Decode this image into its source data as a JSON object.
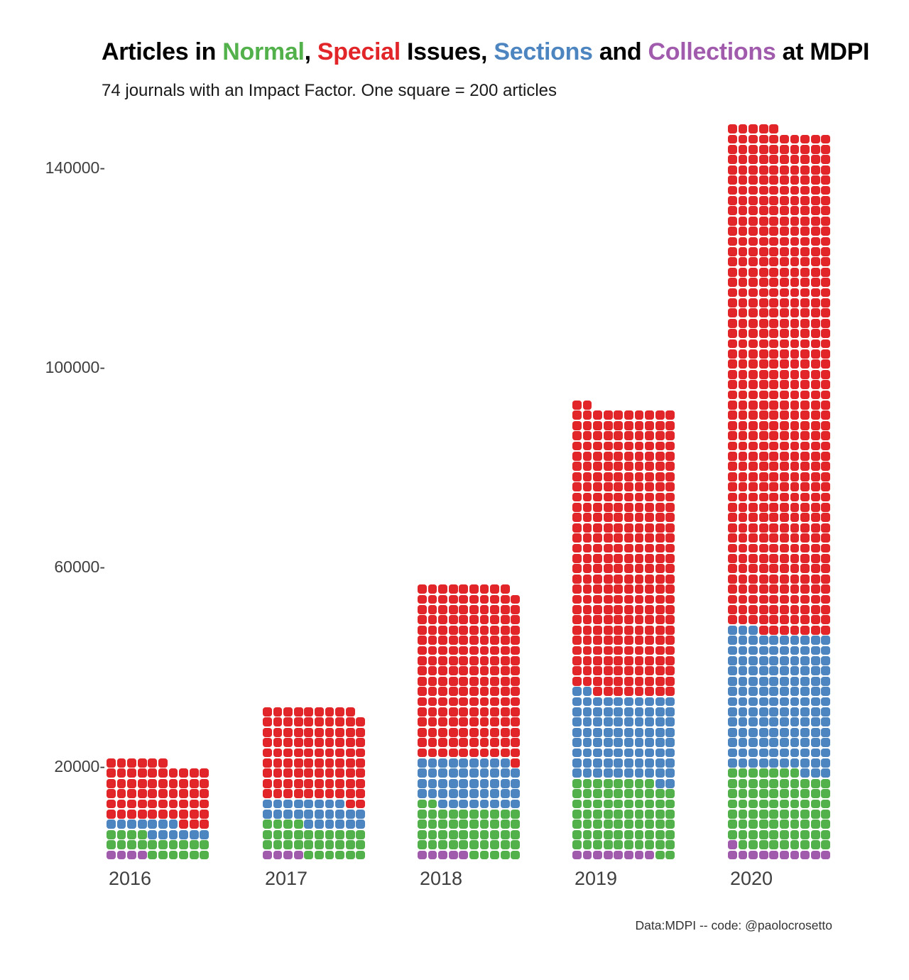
{
  "title": {
    "parts": [
      {
        "text": "Articles in ",
        "color": "#000000"
      },
      {
        "text": "Normal",
        "color": "#53b14c"
      },
      {
        "text": ", ",
        "color": "#000000"
      },
      {
        "text": "Special",
        "color": "#e12529"
      },
      {
        "text": " Issues, ",
        "color": "#000000"
      },
      {
        "text": "Sections",
        "color": "#4d85c0"
      },
      {
        "text": " and ",
        "color": "#000000"
      },
      {
        "text": "Collections",
        "color": "#a05bad"
      },
      {
        "text": " at MDPI",
        "color": "#000000"
      }
    ]
  },
  "subtitle": "74 journals with an Impact Factor. One square = 200 articles",
  "footer": "Data:MDPI -- code: @paolocrosetto",
  "chart_data": {
    "type": "waffle",
    "title": "Articles in Normal, Special Issues, Sections and Collections at MDPI",
    "subtitle": "74 journals with an Impact Factor. One square = 200 articles",
    "unit_per_square": 200,
    "columns_per_row": 10,
    "grid": false,
    "legend_position": "in-title",
    "stack_order_bottom_to_top": [
      "collections",
      "normal",
      "sections",
      "special"
    ],
    "categories": {
      "normal": {
        "label": "Normal",
        "color": "#53b14c"
      },
      "special": {
        "label": "Special Issues",
        "color": "#e12529"
      },
      "sections": {
        "label": "Sections",
        "color": "#4d85c0"
      },
      "collections": {
        "label": "Collections",
        "color": "#a05bad"
      }
    },
    "y_axis": {
      "ticks": [
        {
          "label": "140000-",
          "value": 140000
        },
        {
          "label": "100000-",
          "value": 100000
        },
        {
          "label": "60000-",
          "value": 60000
        },
        {
          "label": "20000-",
          "value": 20000
        }
      ],
      "ylim": [
        0,
        150000
      ]
    },
    "years": [
      {
        "label": "2016",
        "squares": {
          "collections": 4,
          "normal": 20,
          "sections": 13,
          "special": 59
        },
        "articles": {
          "collections": 800,
          "normal": 4000,
          "sections": 2600,
          "special": 11800,
          "total": 19200
        }
      },
      {
        "label": "2017",
        "squares": {
          "collections": 4,
          "normal": 30,
          "sections": 24,
          "special": 91
        },
        "articles": {
          "collections": 800,
          "normal": 6000,
          "sections": 4800,
          "special": 18200,
          "total": 29800
        }
      },
      {
        "label": "2018",
        "squares": {
          "collections": 5,
          "normal": 47,
          "sections": 47,
          "special": 170
        },
        "articles": {
          "collections": 1000,
          "normal": 9400,
          "sections": 9400,
          "special": 34000,
          "total": 53800
        }
      },
      {
        "label": "2019",
        "squares": {
          "collections": 8,
          "normal": 70,
          "sections": 84,
          "special": 280
        },
        "articles": {
          "collections": 1600,
          "normal": 14000,
          "sections": 16800,
          "special": 56000,
          "total": 88400
        }
      },
      {
        "label": "2020",
        "squares": {
          "collections": 11,
          "normal": 76,
          "sections": 136,
          "special": 492
        },
        "articles": {
          "collections": 2200,
          "normal": 15200,
          "sections": 27200,
          "special": 98400,
          "total": 143000
        }
      }
    ]
  }
}
